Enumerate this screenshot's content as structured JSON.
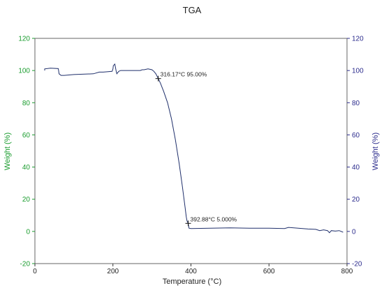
{
  "chart_data": {
    "type": "line",
    "title": "TGA",
    "xlabel": "Temperature (°C)",
    "ylabel_left": "Weight (%)",
    "ylabel_right": "Weight (%)",
    "xlim": [
      0,
      800
    ],
    "ylim": [
      -20,
      120
    ],
    "x_ticks": [
      0,
      200,
      400,
      600,
      800
    ],
    "y_ticks": [
      -20,
      0,
      20,
      40,
      60,
      80,
      100,
      120
    ],
    "grid": false,
    "colors": {
      "left_axis": "#1a9c2e",
      "right_axis": "#2b2b8c",
      "series": "#1f2f6b",
      "frame": "#666666"
    },
    "series": [
      {
        "x": [
          25,
          25,
          40,
          60,
          62,
          67,
          75,
          100,
          150,
          165,
          175,
          198,
          200,
          201,
          205,
          208,
          210,
          215,
          220,
          250,
          270,
          275,
          280,
          290,
          300,
          305,
          310,
          316.17,
          322,
          330,
          340,
          350,
          360,
          370,
          378,
          385,
          388,
          390,
          392.88,
          395,
          400,
          450,
          500,
          550,
          600,
          640,
          650,
          700,
          720,
          730,
          740,
          750,
          755,
          760,
          770,
          780,
          790
        ],
        "y": [
          100,
          101,
          101.5,
          101.2,
          98,
          97,
          97,
          97.5,
          98,
          99,
          99,
          99.5,
          101,
          103,
          104,
          100,
          98,
          99.5,
          100,
          100,
          100,
          100.5,
          100.5,
          101,
          100.5,
          99.5,
          98,
          95,
          92,
          87,
          80,
          70,
          57,
          42,
          28,
          15,
          9,
          6.5,
          5,
          2,
          1.8,
          2,
          2.2,
          2,
          2,
          1.8,
          2.5,
          1.5,
          1.3,
          0.5,
          1,
          0.5,
          -0.8,
          0.5,
          0.2,
          0.5,
          -0.5
        ]
      }
    ],
    "annotations": [
      {
        "text": "316.17°C 95.00%",
        "x": 316.17,
        "y": 95.0
      },
      {
        "text": "392.88°C 5.000%",
        "x": 392.88,
        "y": 5.0
      }
    ]
  }
}
